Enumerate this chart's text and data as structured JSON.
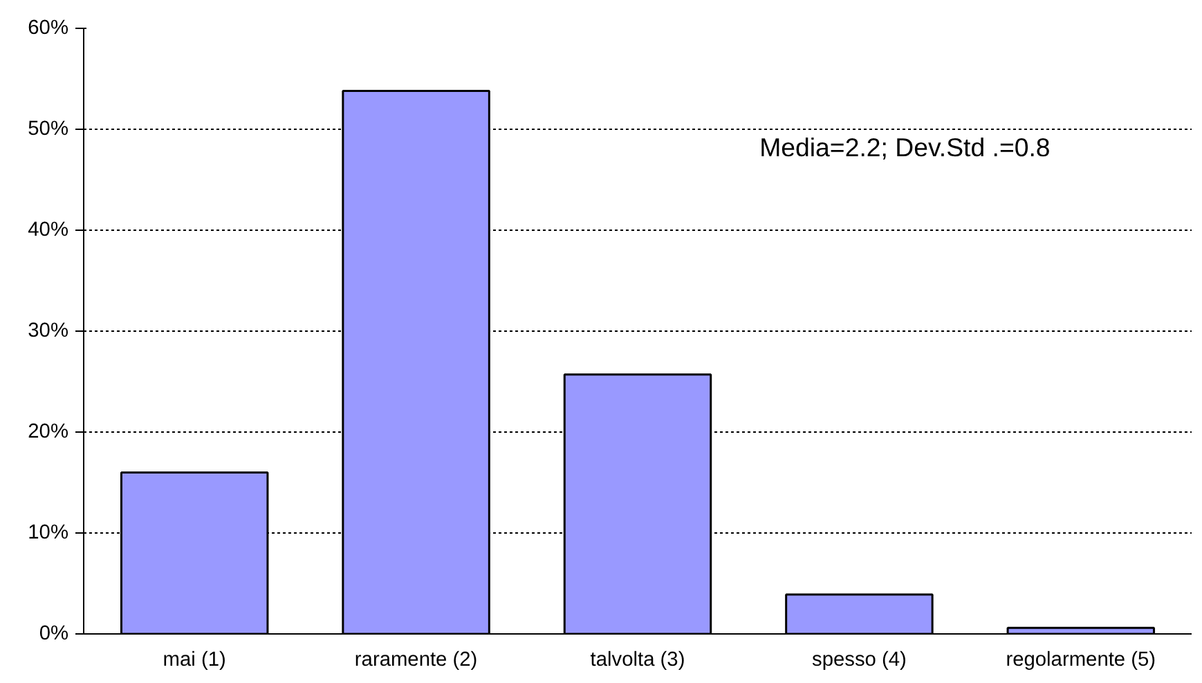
{
  "chart_data": {
    "type": "bar",
    "categories": [
      "mai (1)",
      "raramente (2)",
      "talvolta (3)",
      "spesso (4)",
      "regolarmente (5)"
    ],
    "values": [
      16,
      53.8,
      25.7,
      3.9,
      0.6
    ],
    "color": "#9999ff",
    "ylim": [
      0,
      60
    ],
    "yticks": [
      {
        "value": 0,
        "label": "0%"
      },
      {
        "value": 10,
        "label": "10%"
      },
      {
        "value": 20,
        "label": "20%"
      },
      {
        "value": 30,
        "label": "30%"
      },
      {
        "value": 40,
        "label": "40%"
      },
      {
        "value": 50,
        "label": "50%"
      },
      {
        "value": 60,
        "label": "60%"
      }
    ],
    "grid": "y",
    "annotations": [
      "Media=2.2; Dev.Std .=0.8"
    ]
  }
}
